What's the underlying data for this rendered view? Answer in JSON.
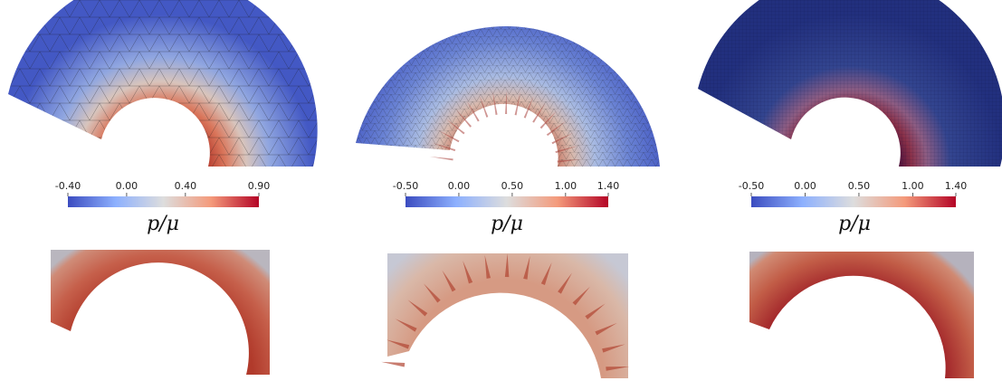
{
  "panels": [
    {
      "id": "coarse",
      "colorbar": {
        "ticks": [
          "-0.40",
          "0.00",
          "0.40",
          "0.90"
        ],
        "min": -0.4,
        "max": 0.9,
        "tick_values": [
          -0.4,
          0.0,
          0.4,
          0.9
        ]
      },
      "symbol": "p/μ",
      "mesh": "coarse triangular",
      "field_style": "smooth",
      "inner_color": "#b03328"
    },
    {
      "id": "medium",
      "colorbar": {
        "ticks": [
          "-0.50",
          "0.00",
          "0.50",
          "1.00",
          "1.40"
        ],
        "min": -0.5,
        "max": 1.4,
        "tick_values": [
          -0.5,
          0.0,
          0.5,
          1.0,
          1.4
        ]
      },
      "symbol": "p/μ",
      "mesh": "medium triangular",
      "field_style": "oscillating",
      "inner_color": "#b5402e"
    },
    {
      "id": "fine",
      "colorbar": {
        "ticks": [
          "-0.50",
          "0.00",
          "0.50",
          "1.00",
          "1.40"
        ],
        "min": -0.5,
        "max": 1.4,
        "tick_values": [
          -0.5,
          0.0,
          0.5,
          1.0,
          1.4
        ]
      },
      "symbol": "p/μ",
      "mesh": "fine quadrilateral",
      "field_style": "smooth",
      "inner_color": "#6b1a3a"
    }
  ],
  "colors": {
    "cold": "#3b4cc0",
    "neutral": "#dddddd",
    "hot": "#b40426",
    "mesh_line": "#1a1a1a"
  }
}
